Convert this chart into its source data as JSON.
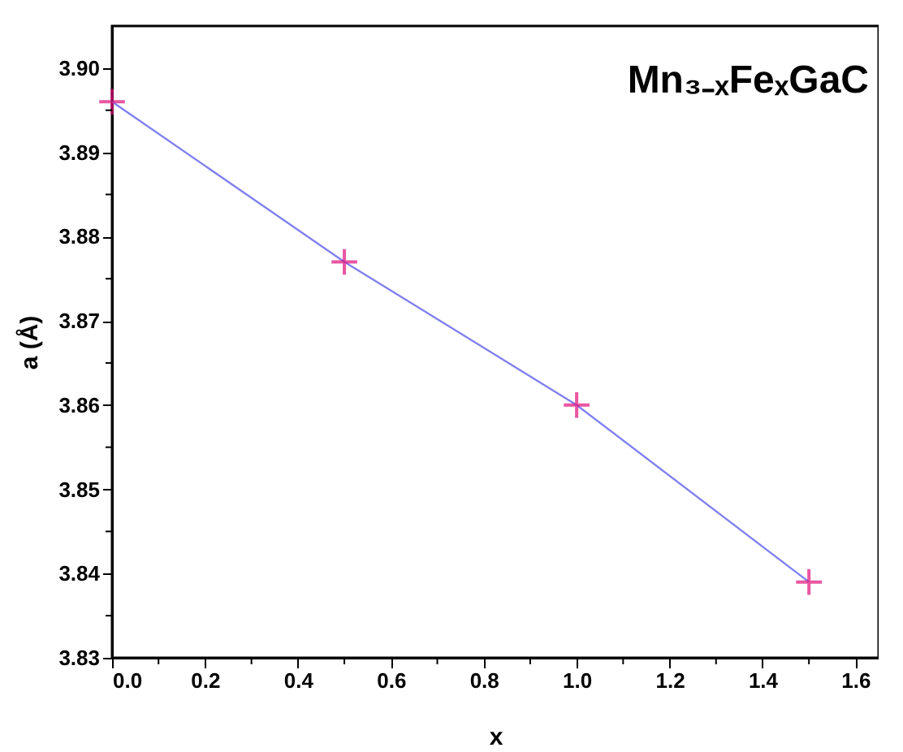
{
  "chart_data": {
    "type": "line",
    "xlabel": "x",
    "ylabel": "a (Å)",
    "annotations": [
      "Mn₃₋ₓFeₓGaC"
    ],
    "x": [
      0,
      0.5,
      1.0,
      1.5
    ],
    "series": [
      {
        "color": "#8080f0",
        "values": [
          3.896,
          3.877,
          3.86,
          3.839
        ],
        "marker": "none",
        "line_style": "solid"
      },
      {
        "type": "scatter",
        "color": "#e0107a",
        "values": [
          3.896,
          3.877,
          3.86,
          3.839
        ],
        "marker": "cross"
      }
    ],
    "xlim": [
      0,
      1.65
    ],
    "xticks": [
      {
        "value": 0,
        "label": "0.0"
      },
      {
        "value": 0.1,
        "label": null
      },
      0.2,
      {
        "value": 0.3,
        "label": null
      },
      0.4,
      {
        "value": 0.5,
        "label": null
      },
      0.6,
      {
        "value": 0.7,
        "label": null
      },
      0.8,
      {
        "value": 0.9,
        "label": null
      },
      {
        "value": 1.0,
        "label": "1.0"
      },
      {
        "value": 1.1,
        "label": null
      },
      1.2,
      {
        "value": 1.3,
        "label": null
      },
      1.4,
      {
        "value": 1.5,
        "label": null
      },
      1.6
    ],
    "ylim": [
      3.83,
      3.905
    ],
    "yticks": [
      3.83,
      {
        "value": 3.835,
        "label": null
      },
      3.84,
      {
        "value": 3.845,
        "label": null
      },
      3.85,
      {
        "value": 3.855,
        "label": null
      },
      3.86,
      {
        "value": 3.865,
        "label": null
      },
      3.87,
      {
        "value": 3.875,
        "label": null
      },
      3.88,
      {
        "value": 3.885,
        "label": null
      },
      3.89,
      {
        "value": 3.895,
        "label": null
      },
      {
        "value": 3.9,
        "label": "3.90"
      }
    ],
    "tick_labels": [
      "x",
      "y"
    ]
  }
}
